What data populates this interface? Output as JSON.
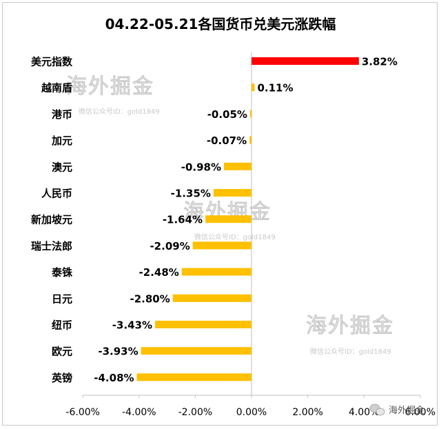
{
  "chart_data": {
    "type": "bar",
    "orientation": "horizontal",
    "title": "04.22-05.21各国货币兑美元涨跌幅",
    "categories": [
      "美元指数",
      "越南盾",
      "港币",
      "加元",
      "澳元",
      "人民币",
      "新加坡元",
      "瑞士法郎",
      "泰铢",
      "日元",
      "纽币",
      "欧元",
      "英镑"
    ],
    "values": [
      3.82,
      0.11,
      -0.05,
      -0.07,
      -0.98,
      -1.35,
      -1.64,
      -2.09,
      -2.48,
      -2.8,
      -3.43,
      -3.93,
      -4.08
    ],
    "data_labels": [
      "3.82%",
      "0.11%",
      "-0.05%",
      "-0.07%",
      "-0.98%",
      "-1.35%",
      "-1.64%",
      "-2.09%",
      "-2.48%",
      "-2.80%",
      "-3.43%",
      "-3.93%",
      "-4.08%"
    ],
    "xlim": [
      -6,
      6
    ],
    "x_ticks": [
      "-6.00%",
      "-4.00%",
      "-2.00%",
      "0.00%",
      "2.00%",
      "4.00%",
      "6.00%"
    ],
    "grid": false,
    "legend": "none",
    "colors": {
      "highlight": "#ff0000",
      "bar": "#ffc000",
      "axis": "#bfbfbf",
      "text": "#000000"
    },
    "highlight_categories": [
      "美元指数"
    ]
  },
  "watermark": {
    "name": "海外掘金",
    "subtitle": "微信公众号ID：gold1849",
    "badge": "海外掘金",
    "badge_icon": "wechat-icon"
  }
}
